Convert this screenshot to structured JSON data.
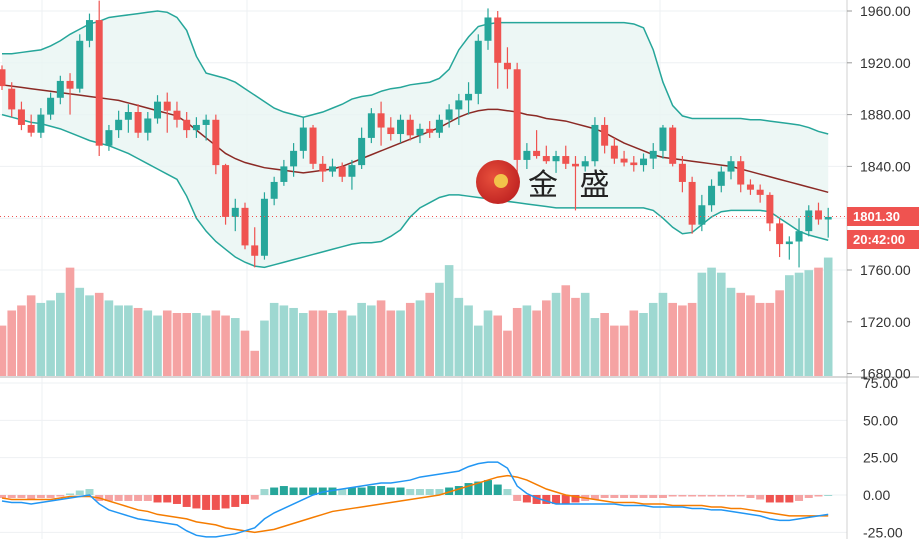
{
  "watermark": {
    "text": "金 盛"
  },
  "last_price_tag": {
    "price": "1801.30",
    "countdown": "20:42:00",
    "color": "#ef5350"
  },
  "colors": {
    "up": "#26a69a",
    "down": "#ef5350",
    "up_vol": "#9ed8d1",
    "down_vol": "#f5a3a3",
    "band": "#26a69a",
    "band_fill": "#e8f5f3",
    "mid": "#8b2a25",
    "macd": "#2196f3",
    "signal": "#f57c00"
  },
  "chart_data": [
    {
      "type": "candlestick",
      "title": "",
      "y_ticks": [
        "1960.00",
        "1920.00",
        "1880.00",
        "1840.00",
        "1760.00"
      ],
      "ylim": [
        1750,
        1968
      ],
      "candles": [
        [
          1915,
          1918,
          1899,
          1902
        ],
        [
          1900,
          1905,
          1878,
          1884
        ],
        [
          1884,
          1890,
          1868,
          1872
        ],
        [
          1872,
          1880,
          1863,
          1866
        ],
        [
          1866,
          1885,
          1862,
          1880
        ],
        [
          1880,
          1897,
          1876,
          1893
        ],
        [
          1893,
          1910,
          1888,
          1906
        ],
        [
          1906,
          1912,
          1880,
          1900
        ],
        [
          1900,
          1942,
          1897,
          1937
        ],
        [
          1937,
          1958,
          1932,
          1953
        ],
        [
          1953,
          1968,
          1848,
          1856
        ],
        [
          1856,
          1872,
          1852,
          1868
        ],
        [
          1868,
          1883,
          1862,
          1876
        ],
        [
          1876,
          1888,
          1866,
          1882
        ],
        [
          1882,
          1888,
          1862,
          1866
        ],
        [
          1866,
          1882,
          1860,
          1877
        ],
        [
          1877,
          1895,
          1873,
          1890
        ],
        [
          1890,
          1897,
          1866,
          1883
        ],
        [
          1883,
          1890,
          1870,
          1876
        ],
        [
          1876,
          1882,
          1862,
          1868
        ],
        [
          1868,
          1878,
          1862,
          1872
        ],
        [
          1872,
          1880,
          1860,
          1876
        ],
        [
          1876,
          1880,
          1834,
          1841
        ],
        [
          1841,
          1842,
          1795,
          1801
        ],
        [
          1801,
          1815,
          1790,
          1808
        ],
        [
          1808,
          1812,
          1776,
          1779
        ],
        [
          1779,
          1793,
          1762,
          1771
        ],
        [
          1771,
          1820,
          1768,
          1815
        ],
        [
          1815,
          1832,
          1810,
          1828
        ],
        [
          1828,
          1845,
          1825,
          1840
        ],
        [
          1840,
          1858,
          1832,
          1852
        ],
        [
          1852,
          1878,
          1846,
          1870
        ],
        [
          1870,
          1872,
          1838,
          1842
        ],
        [
          1842,
          1848,
          1828,
          1836
        ],
        [
          1836,
          1846,
          1832,
          1840
        ],
        [
          1840,
          1843,
          1828,
          1832
        ],
        [
          1832,
          1845,
          1822,
          1841
        ],
        [
          1841,
          1870,
          1838,
          1862
        ],
        [
          1862,
          1885,
          1858,
          1881
        ],
        [
          1881,
          1890,
          1856,
          1870
        ],
        [
          1870,
          1878,
          1860,
          1865
        ],
        [
          1865,
          1880,
          1858,
          1876
        ],
        [
          1876,
          1880,
          1860,
          1864
        ],
        [
          1864,
          1873,
          1858,
          1869
        ],
        [
          1869,
          1875,
          1862,
          1866
        ],
        [
          1866,
          1880,
          1862,
          1876
        ],
        [
          1876,
          1888,
          1870,
          1884
        ],
        [
          1884,
          1896,
          1872,
          1891
        ],
        [
          1891,
          1905,
          1880,
          1896
        ],
        [
          1896,
          1942,
          1888,
          1937
        ],
        [
          1937,
          1962,
          1930,
          1955
        ],
        [
          1955,
          1960,
          1900,
          1920
        ],
        [
          1920,
          1932,
          1900,
          1915
        ],
        [
          1915,
          1920,
          1830,
          1845
        ],
        [
          1845,
          1858,
          1838,
          1852
        ],
        [
          1852,
          1868,
          1846,
          1848
        ],
        [
          1848,
          1856,
          1842,
          1844
        ],
        [
          1844,
          1852,
          1835,
          1848
        ],
        [
          1848,
          1856,
          1838,
          1842
        ],
        [
          1842,
          1848,
          1806,
          1840
        ],
        [
          1840,
          1848,
          1836,
          1844
        ],
        [
          1844,
          1878,
          1840,
          1872
        ],
        [
          1872,
          1878,
          1850,
          1856
        ],
        [
          1856,
          1862,
          1842,
          1846
        ],
        [
          1846,
          1852,
          1840,
          1843
        ],
        [
          1843,
          1848,
          1836,
          1841
        ],
        [
          1841,
          1850,
          1836,
          1846
        ],
        [
          1846,
          1858,
          1838,
          1852
        ],
        [
          1852,
          1872,
          1846,
          1870
        ],
        [
          1870,
          1872,
          1840,
          1842
        ],
        [
          1842,
          1848,
          1820,
          1828
        ],
        [
          1828,
          1832,
          1788,
          1795
        ],
        [
          1795,
          1818,
          1790,
          1810
        ],
        [
          1810,
          1830,
          1805,
          1825
        ],
        [
          1825,
          1840,
          1820,
          1836
        ],
        [
          1836,
          1848,
          1830,
          1844
        ],
        [
          1844,
          1848,
          1820,
          1826
        ],
        [
          1826,
          1830,
          1818,
          1822
        ],
        [
          1822,
          1826,
          1812,
          1818
        ],
        [
          1818,
          1820,
          1790,
          1796
        ],
        [
          1796,
          1800,
          1770,
          1780
        ],
        [
          1780,
          1786,
          1768,
          1782
        ],
        [
          1782,
          1800,
          1762,
          1790
        ],
        [
          1790,
          1810,
          1786,
          1806
        ],
        [
          1806,
          1812,
          1795,
          1799
        ],
        [
          1799,
          1808,
          1785,
          1801
        ]
      ],
      "bands": {
        "upper": [
          1927,
          1927,
          1928,
          1929,
          1930,
          1933,
          1937,
          1942,
          1946,
          1950,
          1952,
          1955,
          1956,
          1957,
          1958,
          1959,
          1960,
          1959,
          1955,
          1945,
          1925,
          1912,
          1910,
          1908,
          1905,
          1900,
          1895,
          1890,
          1885,
          1882,
          1880,
          1878,
          1880,
          1882,
          1885,
          1888,
          1892,
          1894,
          1895,
          1898,
          1900,
          1901,
          1903,
          1904,
          1905,
          1908,
          1915,
          1930,
          1940,
          1948,
          1950,
          1951,
          1951,
          1951,
          1951,
          1951,
          1951,
          1951,
          1951,
          1951,
          1951,
          1951,
          1951,
          1951,
          1951,
          1950,
          1947,
          1930,
          1905,
          1887,
          1879,
          1877,
          1877,
          1877,
          1877,
          1877,
          1877,
          1876,
          1876,
          1875,
          1874,
          1873,
          1872,
          1870,
          1867,
          1865
        ],
        "mid": [
          1903,
          1902,
          1901,
          1900,
          1899,
          1898,
          1897,
          1896,
          1895,
          1894,
          1893,
          1892,
          1891,
          1889,
          1887,
          1885,
          1883,
          1881,
          1879,
          1874,
          1868,
          1862,
          1856,
          1850,
          1846,
          1843,
          1841,
          1839,
          1838,
          1837,
          1836,
          1835,
          1836,
          1837,
          1838,
          1840,
          1843,
          1846,
          1849,
          1852,
          1855,
          1858,
          1861,
          1864,
          1867,
          1870,
          1874,
          1878,
          1881,
          1883,
          1884,
          1884,
          1883,
          1882,
          1880,
          1879,
          1877,
          1876,
          1875,
          1873,
          1871,
          1869,
          1866,
          1862,
          1858,
          1855,
          1852,
          1849,
          1847,
          1846,
          1845,
          1844,
          1843,
          1842,
          1841,
          1840,
          1838,
          1836,
          1834,
          1832,
          1830,
          1828,
          1826,
          1824,
          1822,
          1820
        ],
        "lower": [
          1880,
          1878,
          1876,
          1874,
          1873,
          1871,
          1869,
          1866,
          1863,
          1860,
          1858,
          1856,
          1853,
          1850,
          1846,
          1842,
          1838,
          1834,
          1830,
          1817,
          1800,
          1790,
          1782,
          1776,
          1770,
          1766,
          1763,
          1762,
          1764,
          1766,
          1768,
          1770,
          1772,
          1774,
          1776,
          1778,
          1780,
          1781,
          1781,
          1782,
          1786,
          1791,
          1801,
          1808,
          1812,
          1816,
          1818,
          1818,
          1817,
          1816,
          1815,
          1814,
          1813,
          1812,
          1811,
          1810,
          1809,
          1808,
          1808,
          1808,
          1808,
          1808,
          1808,
          1808,
          1808,
          1808,
          1808,
          1806,
          1800,
          1793,
          1788,
          1789,
          1795,
          1801,
          1805,
          1806,
          1806,
          1806,
          1806,
          1805,
          1800,
          1795,
          1790,
          1787,
          1785,
          1783
        ]
      },
      "volume": {
        "y_ticks": [
          "1720.00",
          "1680.00"
        ],
        "values": [
          40,
          52,
          56,
          64,
          58,
          60,
          66,
          86,
          70,
          64,
          66,
          60,
          56,
          56,
          54,
          52,
          48,
          52,
          50,
          50,
          50,
          48,
          52,
          48,
          46,
          36,
          20,
          44,
          58,
          56,
          54,
          50,
          52,
          52,
          50,
          52,
          48,
          58,
          56,
          60,
          52,
          52,
          58,
          60,
          66,
          74,
          88,
          62,
          56,
          40,
          52,
          48,
          36,
          54,
          56,
          52,
          60,
          66,
          72,
          62,
          66,
          46,
          50,
          40,
          40,
          52,
          50,
          58,
          66,
          58,
          56,
          58,
          82,
          86,
          82,
          70,
          66,
          64,
          58,
          58,
          68,
          80,
          82,
          84,
          86,
          94
        ]
      },
      "macd": {
        "y_ticks": [
          "75.00",
          "50.00",
          "25.00",
          "0.00",
          "-25.00"
        ],
        "ylim": [
          -31,
          82
        ],
        "hist": [
          -2,
          -2,
          -2,
          -3,
          -2,
          -2,
          -1,
          1,
          3,
          4,
          -4,
          -4,
          -4,
          -4,
          -4,
          -4,
          -5,
          -5,
          -6,
          -8,
          -9,
          -10,
          -10,
          -9,
          -8,
          -6,
          -3,
          4,
          5,
          6,
          5,
          5,
          5,
          5,
          5,
          4,
          5,
          5,
          6,
          6,
          5,
          5,
          4,
          4,
          4,
          4,
          5,
          6,
          8,
          9,
          10,
          7,
          4,
          -4,
          -5,
          -6,
          -6,
          -6,
          -6,
          -5,
          -4,
          -3,
          -2,
          -2,
          -2,
          -2,
          -2,
          -2,
          -2,
          -1,
          -1,
          -1,
          -1,
          -1,
          -1,
          -1,
          -1,
          -2,
          -3,
          -5,
          -5,
          -5,
          -4,
          -2,
          -1,
          0
        ],
        "dif": [
          -4,
          -5,
          -5,
          -6,
          -5,
          -4,
          -3,
          -2,
          -1,
          0,
          -6,
          -10,
          -12,
          -14,
          -16,
          -17,
          -18,
          -19,
          -20,
          -24,
          -27,
          -28,
          -28,
          -27,
          -26,
          -24,
          -22,
          -16,
          -12,
          -9,
          -6,
          -3,
          0,
          2,
          3,
          4,
          5,
          6,
          7,
          8,
          8,
          9,
          10,
          12,
          13,
          14,
          15,
          16,
          19,
          21,
          22,
          22,
          18,
          6,
          1,
          -2,
          -4,
          -6,
          -6,
          -6,
          -6,
          -6,
          -6,
          -6,
          -7,
          -7,
          -7,
          -8,
          -8,
          -8,
          -8,
          -9,
          -9,
          -10,
          -10,
          -11,
          -12,
          -13,
          -14,
          -16,
          -17,
          -17,
          -16,
          -15,
          -14,
          -13
        ],
        "dea": [
          -2,
          -3,
          -3,
          -3,
          -3,
          -3,
          -2,
          -1,
          -1,
          -1,
          -2,
          -4,
          -6,
          -8,
          -10,
          -11,
          -13,
          -14,
          -15,
          -16,
          -18,
          -19,
          -20,
          -22,
          -23,
          -24,
          -25,
          -24,
          -23,
          -21,
          -19,
          -17,
          -15,
          -13,
          -11,
          -10,
          -9,
          -8,
          -7,
          -6,
          -5,
          -4,
          -3,
          -2,
          -1,
          0,
          2,
          4,
          6,
          8,
          10,
          12,
          13,
          12,
          10,
          7,
          4,
          2,
          0,
          -1,
          -2,
          -3,
          -4,
          -5,
          -5,
          -5,
          -6,
          -6,
          -6,
          -7,
          -7,
          -7,
          -7,
          -8,
          -8,
          -9,
          -9,
          -10,
          -11,
          -12,
          -13,
          -14,
          -14,
          -14,
          -14,
          -14
        ]
      }
    }
  ]
}
